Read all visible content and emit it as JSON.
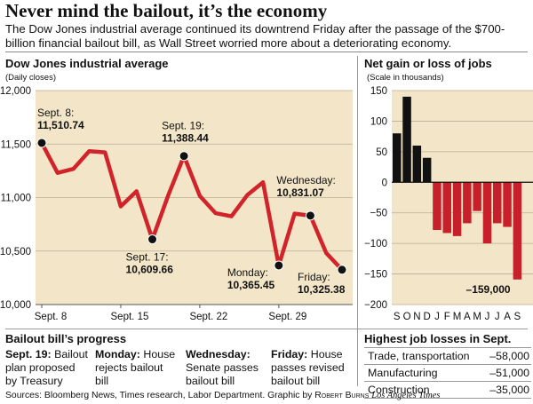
{
  "headline": "Never mind the bailout, it’s the economy",
  "intro": "The Dow Jones industrial average continued its downtrend Friday after the passage of the $700-billion financial bailout bill, as Wall Street worried more about a deteriorating economy.",
  "colors": {
    "panel_bg": "#f3e6c8",
    "line": "#d1232a",
    "bar_red": "#c8202a",
    "bar_black": "#111111",
    "marker": "#111111"
  },
  "chart_data": [
    {
      "type": "line",
      "title": "Dow Jones industrial average",
      "subtitle": "(Daily closes)",
      "ylim": [
        10000,
        12000
      ],
      "yticks": [
        10000,
        10500,
        11000,
        11500,
        12000
      ],
      "ytick_labels": [
        "10,000",
        "10,500",
        "11,000",
        "11,500",
        "12,000"
      ],
      "xtick_labels": [
        "Sept. 8",
        "Sept. 15",
        "Sept. 22",
        "Sept. 29"
      ],
      "xtick_index": [
        0,
        5,
        10,
        15
      ],
      "values": [
        11510.74,
        11231,
        11268,
        11434,
        11422,
        10917,
        11059,
        10609.66,
        11019,
        11388.44,
        11016,
        10854,
        10825,
        11022,
        11143,
        10365.45,
        10850,
        10831.07,
        10482,
        10325.38
      ],
      "annotations": [
        {
          "index": 0,
          "label": "Sept. 8:",
          "value": "11,510.74"
        },
        {
          "index": 7,
          "label": "Sept. 17:",
          "value": "10,609.66"
        },
        {
          "index": 9,
          "label": "Sept. 19:",
          "value": "11,388.44"
        },
        {
          "index": 15,
          "label": "Monday:",
          "value": "10,365.45"
        },
        {
          "index": 17,
          "label": "Wednesday:",
          "value": "10,831.07"
        },
        {
          "index": 19,
          "label": "Friday:",
          "value": "10,325.38"
        }
      ]
    },
    {
      "type": "bar",
      "title": "Net gain or loss of jobs",
      "subtitle": "(Scale in thousands)",
      "ylim": [
        -200,
        150
      ],
      "yticks": [
        150,
        100,
        50,
        0,
        -50,
        -100,
        -150,
        -200
      ],
      "ytick_labels": [
        "150",
        "100",
        "50",
        "0",
        "−50",
        "−100",
        "−150",
        "−200"
      ],
      "categories": [
        "S",
        "O",
        "N",
        "D",
        "J",
        "F",
        "M",
        "A",
        "M",
        "J",
        "J",
        "A",
        "S"
      ],
      "values": [
        80,
        140,
        60,
        40,
        -78,
        -83,
        -88,
        -67,
        -47,
        -100,
        -67,
        -73,
        -159
      ],
      "annotation": {
        "index": 12,
        "text": "–159,000"
      }
    }
  ],
  "progress": {
    "title": "Bailout bill’s progress",
    "items": [
      {
        "bold": "Sept. 19:",
        "text": " Bailout plan proposed by Treasury"
      },
      {
        "bold": "Monday:",
        "text": " House rejects bailout bill"
      },
      {
        "bold": "Wednesday:",
        "text": " Senate passes bailout bill"
      },
      {
        "bold": "Friday:",
        "text": " House passes revised bailout bill"
      }
    ]
  },
  "losses": {
    "title": "Highest job losses in Sept.",
    "rows": [
      {
        "sector": "Trade, transportation",
        "value": "–58,000"
      },
      {
        "sector": "Manufacturing",
        "value": "–51,000"
      },
      {
        "sector": "Construction",
        "value": "–35,000"
      }
    ]
  },
  "sources": {
    "text": "Sources: Bloomberg News, Times research, Labor Department. Graphic by",
    "credit": "Robert Burns",
    "paper": "Los Angeles Times"
  }
}
